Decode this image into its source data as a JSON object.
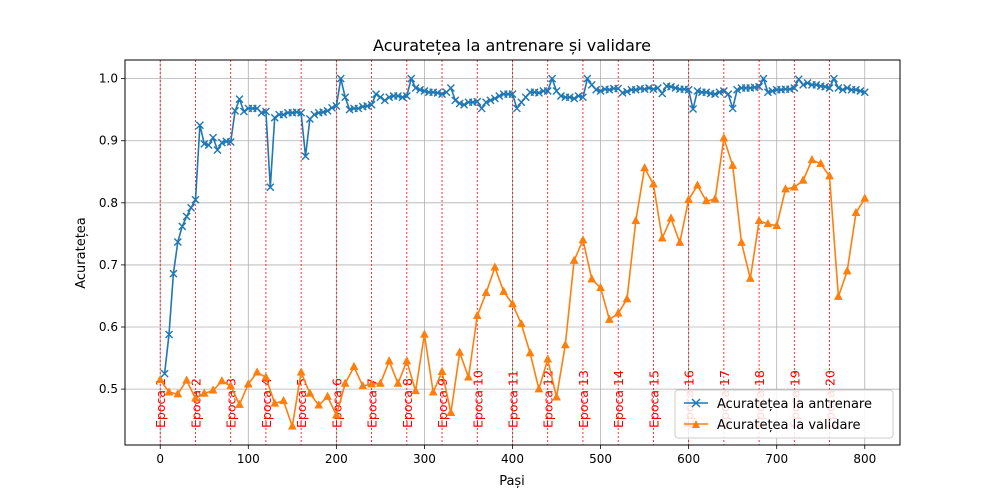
{
  "chart_data": {
    "type": "line",
    "title": "Acuratețea la antrenare și validare",
    "xlabel": "Pași",
    "ylabel": "Acuratețea",
    "xlim": [
      -40,
      840
    ],
    "ylim": [
      0.41,
      1.03
    ],
    "x_ticks": [
      0,
      100,
      200,
      300,
      400,
      500,
      600,
      700,
      800
    ],
    "y_ticks": [
      0.5,
      0.6,
      0.7,
      0.8,
      0.9,
      1.0
    ],
    "y_tick_labels": [
      "0.5",
      "0.6",
      "0.7",
      "0.8",
      "0.9",
      "1.0"
    ],
    "grid": true,
    "legend_position": "lower-right",
    "epoch_lines": [
      {
        "x": 0,
        "label": "Epoca 1"
      },
      {
        "x": 40,
        "label": "Epoca 2"
      },
      {
        "x": 80,
        "label": "Epoca 3"
      },
      {
        "x": 120,
        "label": "Epoca 4"
      },
      {
        "x": 160,
        "label": "Epoca 5"
      },
      {
        "x": 200,
        "label": "Epoca 6"
      },
      {
        "x": 240,
        "label": "Epoca 7"
      },
      {
        "x": 280,
        "label": "Epoca 8"
      },
      {
        "x": 320,
        "label": "Epoca 9"
      },
      {
        "x": 360,
        "label": "Epoca 10"
      },
      {
        "x": 400,
        "label": "Epoca 11"
      },
      {
        "x": 440,
        "label": "Epoca 12"
      },
      {
        "x": 480,
        "label": "Epoca 13"
      },
      {
        "x": 520,
        "label": "Epoca 14"
      },
      {
        "x": 560,
        "label": "Epoca 15"
      },
      {
        "x": 600,
        "label": "Epoca 16"
      },
      {
        "x": 640,
        "label": "Epoca 17"
      },
      {
        "x": 680,
        "label": "Epoca 18"
      },
      {
        "x": 720,
        "label": "Epoca 19"
      },
      {
        "x": 760,
        "label": "Epoca 20"
      }
    ],
    "series": [
      {
        "name": "Acuratețea la antrenare",
        "color": "#1f77b4",
        "marker": "x",
        "x": [
          5,
          10,
          15,
          20,
          25,
          30,
          35,
          40,
          45,
          50,
          55,
          60,
          65,
          70,
          75,
          80,
          85,
          90,
          95,
          100,
          105,
          110,
          115,
          120,
          125,
          130,
          135,
          140,
          145,
          150,
          155,
          160,
          165,
          170,
          175,
          180,
          185,
          190,
          195,
          200,
          205,
          210,
          215,
          220,
          225,
          230,
          235,
          240,
          245,
          250,
          255,
          260,
          265,
          270,
          275,
          280,
          285,
          290,
          295,
          300,
          305,
          310,
          315,
          320,
          325,
          330,
          335,
          340,
          345,
          350,
          355,
          360,
          365,
          370,
          375,
          380,
          385,
          390,
          395,
          400,
          405,
          410,
          415,
          420,
          425,
          430,
          435,
          440,
          445,
          450,
          455,
          460,
          465,
          470,
          475,
          480,
          485,
          490,
          495,
          500,
          505,
          510,
          515,
          520,
          525,
          530,
          535,
          540,
          545,
          550,
          555,
          560,
          565,
          570,
          575,
          580,
          585,
          590,
          595,
          600,
          605,
          610,
          615,
          620,
          625,
          630,
          635,
          640,
          645,
          650,
          655,
          660,
          665,
          670,
          675,
          680,
          685,
          690,
          695,
          700,
          705,
          710,
          715,
          720,
          725,
          730,
          735,
          740,
          745,
          750,
          755,
          760,
          765,
          770,
          775,
          780,
          785,
          790,
          795,
          800
        ],
        "y": [
          0.525,
          0.588,
          0.686,
          0.737,
          0.762,
          0.778,
          0.792,
          0.805,
          0.925,
          0.895,
          0.893,
          0.905,
          0.885,
          0.897,
          0.899,
          0.898,
          0.948,
          0.967,
          0.947,
          0.952,
          0.952,
          0.952,
          0.945,
          0.947,
          0.825,
          0.937,
          0.942,
          0.942,
          0.945,
          0.945,
          0.946,
          0.945,
          0.875,
          0.935,
          0.942,
          0.945,
          0.946,
          0.948,
          0.953,
          0.956,
          1.0,
          0.97,
          0.95,
          0.952,
          0.952,
          0.955,
          0.956,
          0.958,
          0.975,
          0.97,
          0.965,
          0.97,
          0.972,
          0.972,
          0.97,
          0.972,
          1.0,
          0.985,
          0.982,
          0.98,
          0.978,
          0.978,
          0.977,
          0.975,
          0.978,
          0.985,
          0.965,
          0.96,
          0.958,
          0.962,
          0.962,
          0.963,
          0.952,
          0.962,
          0.965,
          0.968,
          0.972,
          0.975,
          0.975,
          0.975,
          0.952,
          0.962,
          0.97,
          0.978,
          0.978,
          0.977,
          0.98,
          0.98,
          1.0,
          0.98,
          0.972,
          0.97,
          0.97,
          0.968,
          0.972,
          0.97,
          1.0,
          0.99,
          0.982,
          0.98,
          0.983,
          0.982,
          0.984,
          0.984,
          0.977,
          0.979,
          0.982,
          0.982,
          0.984,
          0.983,
          0.985,
          0.983,
          0.985,
          0.976,
          0.988,
          0.987,
          0.985,
          0.983,
          0.983,
          0.982,
          0.951,
          0.98,
          0.978,
          0.978,
          0.976,
          0.975,
          0.978,
          0.98,
          0.975,
          0.952,
          0.982,
          0.985,
          0.985,
          0.985,
          0.986,
          0.987,
          1.0,
          0.978,
          0.98,
          0.982,
          0.982,
          0.983,
          0.983,
          0.985,
          0.999,
          0.99,
          0.993,
          0.99,
          0.99,
          0.988,
          0.987,
          0.985,
          1.0,
          0.985,
          0.982,
          0.985,
          0.982,
          0.982,
          0.98,
          0.978
        ]
      },
      {
        "name": "Acuratețea la validare",
        "color": "#ff7f0e",
        "marker": "triangle-up",
        "x": [
          0,
          10,
          20,
          30,
          40,
          50,
          60,
          70,
          80,
          90,
          100,
          110,
          120,
          130,
          140,
          150,
          160,
          170,
          180,
          190,
          200,
          210,
          220,
          230,
          240,
          250,
          260,
          270,
          280,
          290,
          300,
          310,
          320,
          330,
          340,
          350,
          360,
          370,
          380,
          390,
          400,
          410,
          420,
          430,
          440,
          450,
          460,
          470,
          480,
          490,
          500,
          510,
          520,
          530,
          540,
          550,
          560,
          570,
          580,
          590,
          600,
          610,
          620,
          630,
          640,
          650,
          660,
          670,
          680,
          690,
          700,
          710,
          720,
          730,
          740,
          750,
          760,
          770,
          780,
          790,
          800
        ],
        "y": [
          0.515,
          0.495,
          0.492,
          0.514,
          0.485,
          0.493,
          0.498,
          0.513,
          0.505,
          0.475,
          0.508,
          0.527,
          0.519,
          0.477,
          0.481,
          0.44,
          0.527,
          0.493,
          0.474,
          0.488,
          0.458,
          0.509,
          0.536,
          0.505,
          0.508,
          0.509,
          0.545,
          0.509,
          0.545,
          0.497,
          0.588,
          0.495,
          0.528,
          0.462,
          0.559,
          0.519,
          0.618,
          0.655,
          0.696,
          0.657,
          0.637,
          0.605,
          0.558,
          0.5,
          0.548,
          0.487,
          0.571,
          0.707,
          0.74,
          0.677,
          0.663,
          0.612,
          0.622,
          0.645,
          0.771,
          0.856,
          0.83,
          0.743,
          0.775,
          0.736,
          0.805,
          0.828,
          0.803,
          0.806,
          0.904,
          0.86,
          0.736,
          0.678,
          0.771,
          0.766,
          0.763,
          0.822,
          0.825,
          0.836,
          0.869,
          0.863,
          0.843,
          0.649,
          0.69,
          0.784,
          0.807
        ]
      }
    ]
  }
}
